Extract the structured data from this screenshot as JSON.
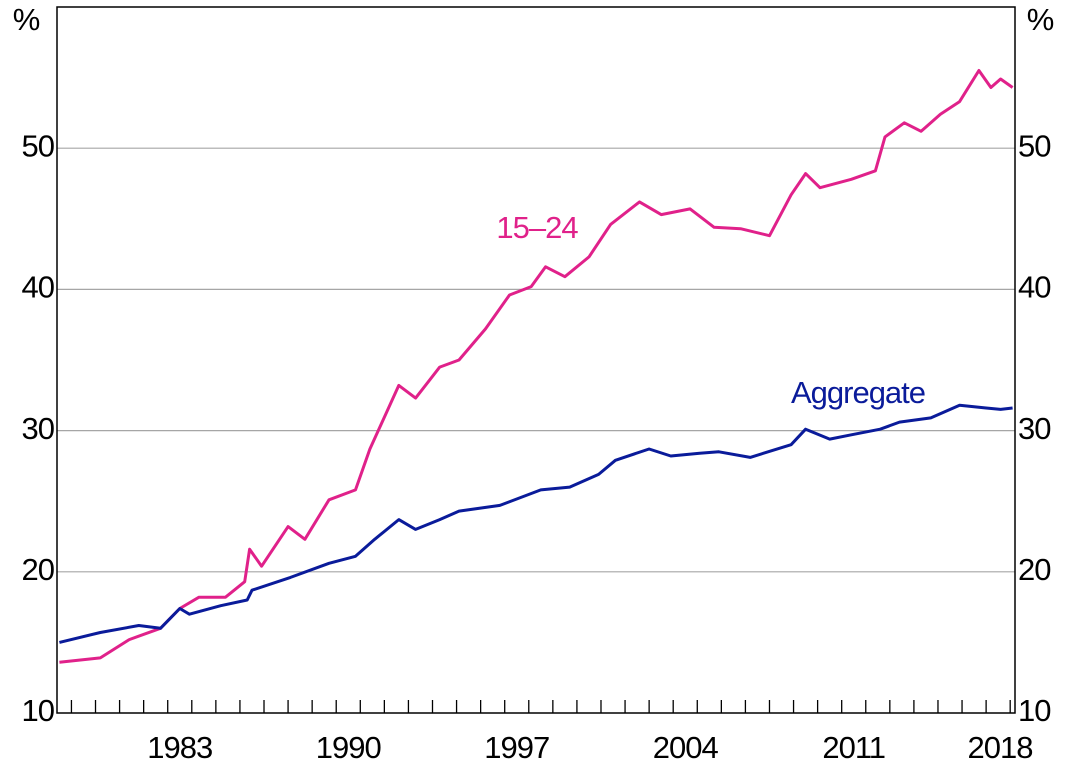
{
  "chart_data": {
    "type": "line",
    "y_unit_label": "%",
    "xlim": [
      1978.4,
      2018.2
    ],
    "xticks": [
      {
        "value": 1983.5,
        "label": "1983"
      },
      {
        "value": 1990.5,
        "label": "1990"
      },
      {
        "value": 1997.5,
        "label": "1997"
      },
      {
        "value": 2004.5,
        "label": "2004"
      },
      {
        "value": 2011.5,
        "label": "2011"
      },
      {
        "value": 2018.5,
        "label": "2018"
      }
    ],
    "xminorticks": [
      1979,
      1980,
      1981,
      1982,
      1983,
      1984,
      1985,
      1986,
      1987,
      1988,
      1989,
      1990,
      1991,
      1992,
      1993,
      1994,
      1995,
      1996,
      1997,
      1998,
      1999,
      2000,
      2001,
      2002,
      2003,
      2004,
      2005,
      2006,
      2007,
      2008,
      2009,
      2010,
      2011,
      2012,
      2013,
      2014,
      2015,
      2016,
      2017,
      2018
    ],
    "ylim": [
      10,
      60
    ],
    "yticks": [
      10,
      20,
      30,
      40,
      50
    ],
    "grid": true,
    "series": [
      {
        "name": "15–24",
        "color": "#e0218a",
        "x": [
          1978.5,
          1980.2,
          1981.4,
          1982.7,
          1983.5,
          1984.3,
          1985.4,
          1986.2,
          1986.4,
          1986.9,
          1988.0,
          1988.7,
          1989.7,
          1990.8,
          1991.4,
          1992.6,
          1993.3,
          1994.3,
          1995.1,
          1996.2,
          1997.2,
          1998.1,
          1998.7,
          1999.5,
          2000.5,
          2001.4,
          2002.6,
          2003.5,
          2004.7,
          2005.7,
          2006.8,
          2008.0,
          2008.9,
          2009.5,
          2010.1,
          2011.4,
          2012.4,
          2012.8,
          2013.6,
          2014.3,
          2015.1,
          2015.9,
          2016.7,
          2017.2,
          2017.6,
          2018.1
        ],
        "values": [
          13.6,
          13.9,
          15.2,
          16.0,
          17.4,
          18.2,
          18.2,
          19.3,
          21.6,
          20.4,
          23.2,
          22.3,
          25.1,
          25.8,
          28.7,
          33.2,
          32.3,
          34.5,
          35.0,
          37.2,
          39.6,
          40.2,
          41.6,
          40.9,
          42.3,
          44.6,
          46.2,
          45.3,
          45.7,
          44.4,
          44.3,
          43.8,
          46.7,
          48.2,
          47.2,
          47.8,
          48.4,
          50.8,
          51.8,
          51.2,
          52.4,
          53.3,
          55.5,
          54.3,
          54.9,
          54.3
        ]
      },
      {
        "name": "Aggregate",
        "color": "#0a1b9a",
        "x": [
          1978.5,
          1980.2,
          1981.8,
          1982.7,
          1983.5,
          1983.9,
          1985.2,
          1986.3,
          1986.5,
          1988.1,
          1989.7,
          1990.8,
          1991.6,
          1992.6,
          1993.3,
          1994.3,
          1995.1,
          1996.8,
          1998.5,
          1999.7,
          2000.9,
          2001.6,
          2003.0,
          2003.9,
          2005.1,
          2005.9,
          2007.2,
          2008.9,
          2009.5,
          2010.5,
          2011.4,
          2012.6,
          2013.4,
          2014.7,
          2015.9,
          2017.0,
          2017.6,
          2018.1
        ],
        "values": [
          15.0,
          15.7,
          16.2,
          16.0,
          17.4,
          17.0,
          17.6,
          18.0,
          18.7,
          19.6,
          20.6,
          21.1,
          22.3,
          23.7,
          23.0,
          23.7,
          24.3,
          24.7,
          25.8,
          26.0,
          26.9,
          27.9,
          28.7,
          28.2,
          28.4,
          28.5,
          28.1,
          29.0,
          30.1,
          29.4,
          29.7,
          30.1,
          30.6,
          30.9,
          31.8,
          31.6,
          31.5,
          31.6
        ]
      }
    ]
  }
}
